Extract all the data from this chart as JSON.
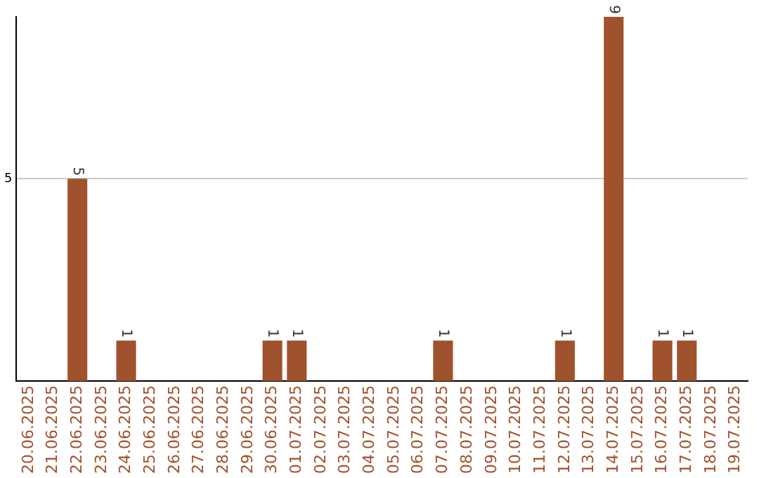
{
  "chart_data": {
    "type": "bar",
    "categories": [
      "20.06.2025",
      "21.06.2025",
      "22.06.2025",
      "23.06.2025",
      "24.06.2025",
      "25.06.2025",
      "26.06.2025",
      "27.06.2025",
      "28.06.2025",
      "29.06.2025",
      "30.06.2025",
      "01.07.2025",
      "02.07.2025",
      "03.07.2025",
      "04.07.2025",
      "05.07.2025",
      "06.07.2025",
      "07.07.2025",
      "08.07.2025",
      "09.07.2025",
      "10.07.2025",
      "11.07.2025",
      "12.07.2025",
      "13.07.2025",
      "14.07.2025",
      "15.07.2025",
      "16.07.2025",
      "17.07.2025",
      "18.07.2025",
      "19.07.2025"
    ],
    "values": [
      0,
      0,
      5,
      0,
      1,
      0,
      0,
      0,
      0,
      0,
      1,
      1,
      0,
      0,
      0,
      0,
      0,
      1,
      0,
      0,
      0,
      0,
      1,
      0,
      9,
      0,
      1,
      1,
      0,
      0
    ],
    "value_labels": [
      null,
      null,
      "5",
      null,
      "1",
      null,
      null,
      null,
      null,
      null,
      "1",
      "1",
      null,
      null,
      null,
      null,
      null,
      "1",
      null,
      null,
      null,
      null,
      "1",
      null,
      "9",
      null,
      "1",
      "1",
      null,
      null
    ],
    "color": "#a0522d",
    "ylim": [
      0,
      9
    ],
    "yticks": [
      5
    ],
    "grid": "y"
  }
}
